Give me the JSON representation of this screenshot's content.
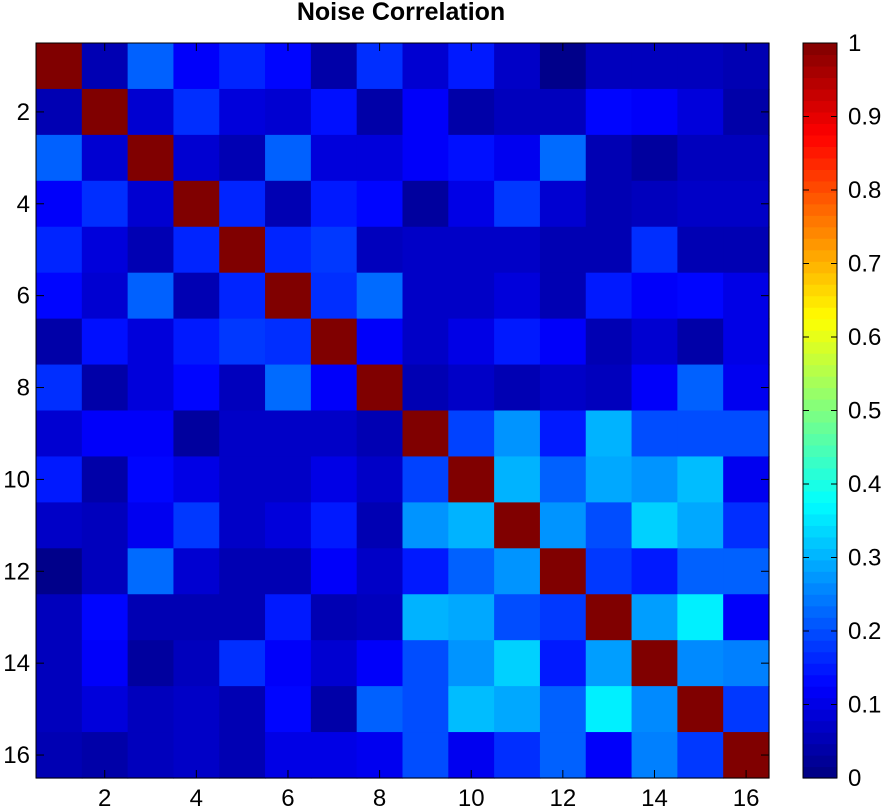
{
  "chart_data": {
    "type": "heatmap",
    "title": "Noise Correlation",
    "xlabel": "",
    "ylabel": "",
    "rows": 16,
    "cols": 16,
    "x_ticks": [
      2,
      4,
      6,
      8,
      10,
      12,
      14,
      16
    ],
    "y_ticks": [
      2,
      4,
      6,
      8,
      10,
      12,
      14,
      16
    ],
    "colorbar": {
      "colormap": "jet",
      "min": 0,
      "max": 1,
      "ticks": [
        0,
        0.1,
        0.2,
        0.3,
        0.4,
        0.5,
        0.6,
        0.7,
        0.8,
        0.9,
        1
      ],
      "tick_labels": [
        "0",
        "0.1",
        "0.2",
        "0.3",
        "0.4",
        "0.5",
        "0.6",
        "0.7",
        "0.8",
        "0.9",
        "1"
      ]
    },
    "values": [
      [
        1.0,
        0.05,
        0.22,
        0.12,
        0.16,
        0.13,
        0.04,
        0.17,
        0.08,
        0.15,
        0.07,
        0.01,
        0.06,
        0.06,
        0.06,
        0.05
      ],
      [
        0.05,
        1.0,
        0.08,
        0.17,
        0.09,
        0.08,
        0.14,
        0.04,
        0.12,
        0.04,
        0.06,
        0.06,
        0.13,
        0.12,
        0.09,
        0.04
      ],
      [
        0.22,
        0.08,
        1.0,
        0.08,
        0.05,
        0.22,
        0.09,
        0.09,
        0.12,
        0.14,
        0.11,
        0.23,
        0.05,
        0.03,
        0.06,
        0.06
      ],
      [
        0.12,
        0.17,
        0.08,
        1.0,
        0.16,
        0.05,
        0.15,
        0.13,
        0.03,
        0.1,
        0.18,
        0.08,
        0.05,
        0.06,
        0.07,
        0.07
      ],
      [
        0.16,
        0.09,
        0.05,
        0.16,
        1.0,
        0.16,
        0.18,
        0.06,
        0.07,
        0.07,
        0.07,
        0.05,
        0.05,
        0.17,
        0.05,
        0.05
      ],
      [
        0.13,
        0.08,
        0.22,
        0.05,
        0.16,
        1.0,
        0.17,
        0.23,
        0.07,
        0.07,
        0.09,
        0.05,
        0.15,
        0.12,
        0.13,
        0.1
      ],
      [
        0.04,
        0.14,
        0.09,
        0.15,
        0.18,
        0.17,
        1.0,
        0.12,
        0.07,
        0.1,
        0.15,
        0.12,
        0.05,
        0.08,
        0.04,
        0.1
      ],
      [
        0.17,
        0.04,
        0.09,
        0.13,
        0.06,
        0.23,
        0.12,
        1.0,
        0.05,
        0.07,
        0.05,
        0.07,
        0.06,
        0.12,
        0.22,
        0.11
      ],
      [
        0.08,
        0.12,
        0.12,
        0.03,
        0.07,
        0.07,
        0.07,
        0.05,
        1.0,
        0.19,
        0.27,
        0.15,
        0.3,
        0.2,
        0.2,
        0.2
      ],
      [
        0.15,
        0.04,
        0.13,
        0.1,
        0.07,
        0.07,
        0.1,
        0.07,
        0.19,
        1.0,
        0.3,
        0.22,
        0.29,
        0.27,
        0.31,
        0.11
      ],
      [
        0.07,
        0.06,
        0.11,
        0.18,
        0.07,
        0.09,
        0.15,
        0.05,
        0.27,
        0.3,
        1.0,
        0.27,
        0.2,
        0.33,
        0.29,
        0.17
      ],
      [
        0.01,
        0.06,
        0.23,
        0.08,
        0.05,
        0.05,
        0.12,
        0.07,
        0.15,
        0.22,
        0.27,
        1.0,
        0.18,
        0.15,
        0.22,
        0.22
      ],
      [
        0.06,
        0.13,
        0.05,
        0.05,
        0.05,
        0.15,
        0.05,
        0.06,
        0.3,
        0.29,
        0.2,
        0.18,
        1.0,
        0.28,
        0.36,
        0.12
      ],
      [
        0.06,
        0.12,
        0.03,
        0.06,
        0.17,
        0.12,
        0.08,
        0.12,
        0.2,
        0.27,
        0.33,
        0.15,
        0.28,
        1.0,
        0.26,
        0.25
      ],
      [
        0.06,
        0.09,
        0.06,
        0.07,
        0.05,
        0.13,
        0.04,
        0.22,
        0.2,
        0.31,
        0.29,
        0.22,
        0.36,
        0.26,
        1.0,
        0.18
      ],
      [
        0.05,
        0.04,
        0.06,
        0.07,
        0.05,
        0.1,
        0.1,
        0.11,
        0.2,
        0.11,
        0.17,
        0.22,
        0.12,
        0.25,
        0.18,
        1.0
      ]
    ]
  }
}
